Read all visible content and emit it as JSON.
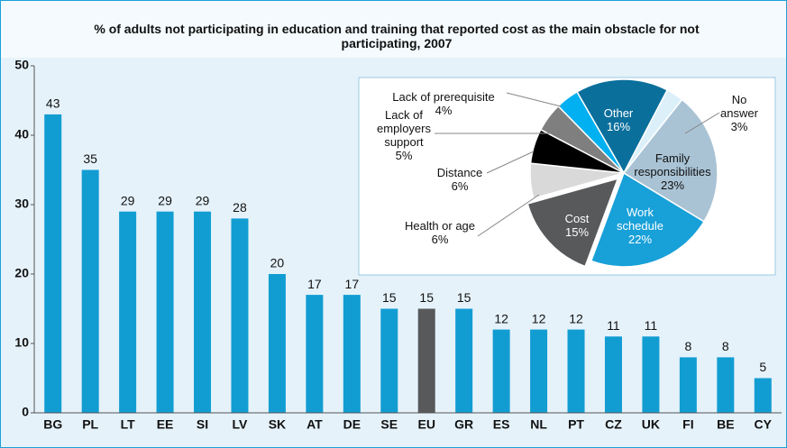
{
  "chart_data": [
    {
      "type": "bar",
      "title": "% of adults not participating in education and training that reported cost as the main obstacle for not participating, 2007",
      "categories": [
        "BG",
        "PL",
        "LT",
        "EE",
        "SI",
        "LV",
        "SK",
        "AT",
        "DE",
        "SE",
        "EU",
        "GR",
        "ES",
        "NL",
        "PT",
        "CZ",
        "UK",
        "FI",
        "BE",
        "CY"
      ],
      "values": [
        43,
        35,
        29,
        29,
        29,
        28,
        20,
        17,
        17,
        15,
        15,
        15,
        12,
        12,
        12,
        11,
        11,
        8,
        8,
        5
      ],
      "colors": [
        "#129dd2",
        "#129dd2",
        "#129dd2",
        "#129dd2",
        "#129dd2",
        "#129dd2",
        "#129dd2",
        "#129dd2",
        "#129dd2",
        "#129dd2",
        "#58595b",
        "#129dd2",
        "#129dd2",
        "#129dd2",
        "#129dd2",
        "#129dd2",
        "#129dd2",
        "#129dd2",
        "#129dd2",
        "#129dd2"
      ],
      "ylim": [
        0,
        50
      ],
      "yticks": [
        0,
        10,
        20,
        30,
        40,
        50
      ],
      "grid": false
    },
    {
      "type": "pie",
      "categories": [
        "Other",
        "No answer",
        "Family responsibilities",
        "Work schedule",
        "Cost",
        "Health or age",
        "Distance",
        "Lack of employers support",
        "Lack of prerequisite"
      ],
      "values": [
        16,
        3,
        23,
        22,
        15,
        6,
        6,
        5,
        4
      ],
      "value_labels": [
        "16%",
        "3%",
        "23%",
        "22%",
        "15%",
        "6%",
        "6%",
        "5%",
        "4%"
      ],
      "colors": [
        "#0b6f9c",
        "#dcf0fa",
        "#a9c3d5",
        "#18a0d8",
        "#58595b",
        "#d9d9d9",
        "#000000",
        "#7f7f7f",
        "#00b0f0"
      ]
    }
  ]
}
